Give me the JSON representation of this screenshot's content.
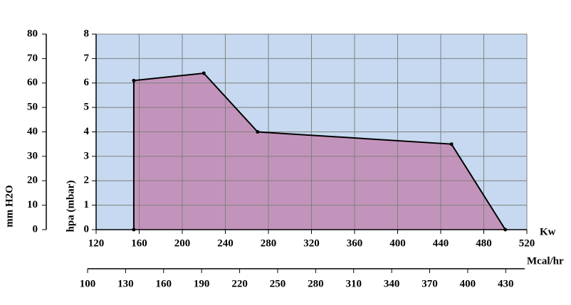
{
  "chart_data": {
    "type": "area",
    "x_label": "Kw",
    "y_label": "hpa (mbar)",
    "y2_label": "mm H2O",
    "x2_label": "Mcal/hr",
    "x": [
      155,
      155,
      220,
      270,
      450,
      500
    ],
    "values": [
      0,
      6.1,
      6.4,
      4,
      3.5,
      0
    ],
    "color": "#c394bb",
    "line_color": "#000000",
    "background": "#c6d9f0",
    "grid": true,
    "xlim": [
      120,
      520
    ],
    "xticks": [
      120,
      160,
      200,
      240,
      280,
      320,
      360,
      400,
      440,
      480,
      520
    ],
    "ylim": [
      0,
      8
    ],
    "yticks": [
      0,
      1,
      2,
      3,
      4,
      5,
      6,
      7,
      8
    ],
    "y2lim": [
      0,
      80
    ],
    "y2ticks": [
      0,
      10,
      20,
      30,
      40,
      50,
      60,
      70,
      80
    ],
    "x2lim": [
      100,
      445
    ],
    "x2ticks": [
      100,
      130,
      160,
      190,
      220,
      250,
      280,
      310,
      340,
      370,
      400,
      430
    ]
  }
}
